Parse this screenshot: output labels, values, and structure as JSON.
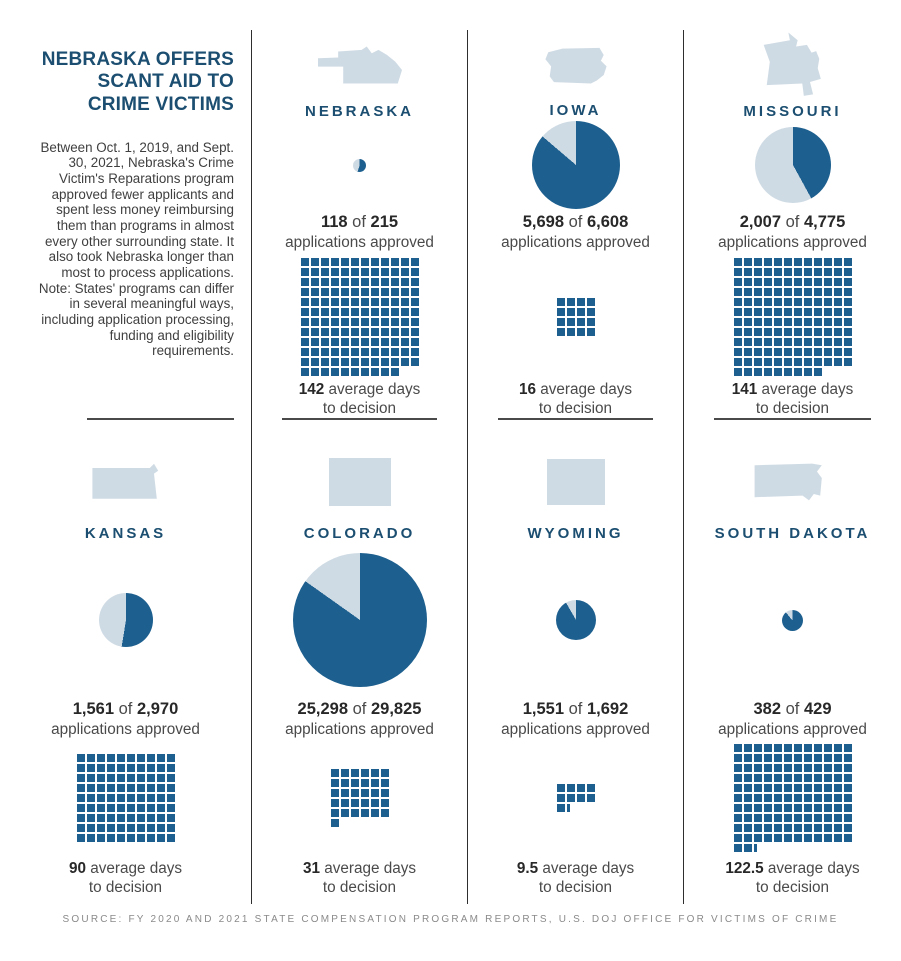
{
  "intro": {
    "title_lines": "NEBRASKA OFFERS SCANT AID TO CRIME VICTIMS",
    "body": "Between Oct. 1, 2019, and Sept. 30, 2021, Nebraska's Crime Victim's Reparations program approved fewer applicants and spent less money reimbursing them than programs in almost every other surrounding state. It also took Nebraska longer than most to process applications.",
    "note": "Note: States' programs can differ in several meaningful ways, including application processing, funding and eligibility requirements."
  },
  "labels": {
    "of": "of",
    "approved_line": "applications approved",
    "avg_days": "average days",
    "to_decision": "to decision"
  },
  "colors": {
    "blue": "#1d5f8e",
    "light": "#cfdbe4",
    "navy": "#1b4e70"
  },
  "source": "SOURCE: FY 2020 AND 2021 STATE COMPENSATION PROGRAM REPORTS, U.S. DOJ OFFICE FOR VICTIMS OF CRIME",
  "states": [
    {
      "name": "NEBRASKA",
      "approved": 118,
      "total": 215,
      "approved_label": "118",
      "total_label": "215",
      "pie_diameter": 13,
      "days_label": "142",
      "waffle": {
        "cols": 12,
        "full": 142,
        "half": false
      }
    },
    {
      "name": "IOWA",
      "approved": 5698,
      "total": 6608,
      "approved_label": "5,698",
      "total_label": "6,608",
      "pie_diameter": 88,
      "days_label": "16",
      "waffle": {
        "cols": 4,
        "full": 16,
        "half": false
      }
    },
    {
      "name": "MISSOURI",
      "approved": 2007,
      "total": 4775,
      "approved_label": "2,007",
      "total_label": "4,775",
      "pie_diameter": 76,
      "days_label": "141",
      "waffle": {
        "cols": 12,
        "full": 141,
        "half": false
      }
    },
    {
      "name": "KANSAS",
      "approved": 1561,
      "total": 2970,
      "approved_label": "1,561",
      "total_label": "2,970",
      "pie_diameter": 54,
      "days_label": "90",
      "waffle": {
        "cols": 10,
        "full": 90,
        "half": false
      }
    },
    {
      "name": "COLORADO",
      "approved": 25298,
      "total": 29825,
      "approved_label": "25,298",
      "total_label": "29,825",
      "pie_diameter": 134,
      "days_label": "31",
      "waffle": {
        "cols": 6,
        "full": 31,
        "half": false
      }
    },
    {
      "name": "WYOMING",
      "approved": 1551,
      "total": 1692,
      "approved_label": "1,551",
      "total_label": "1,692",
      "pie_diameter": 40,
      "days_label": "9.5",
      "waffle": {
        "cols": 4,
        "full": 9,
        "half": true
      }
    },
    {
      "name": "SOUTH DAKOTA",
      "approved": 382,
      "total": 429,
      "approved_label": "382",
      "total_label": "429",
      "pie_diameter": 21,
      "days_label": "122.5",
      "waffle": {
        "cols": 12,
        "full": 122,
        "half": true
      }
    }
  ],
  "chart_data": {
    "type": "table",
    "title": "Nebraska offers scant aid to crime victims",
    "columns": [
      "state",
      "applications_approved",
      "applications_total",
      "avg_days_to_decision"
    ],
    "rows": [
      [
        "Nebraska",
        118,
        215,
        142
      ],
      [
        "Iowa",
        5698,
        6608,
        16
      ],
      [
        "Missouri",
        2007,
        4775,
        141
      ],
      [
        "Kansas",
        1561,
        2970,
        90
      ],
      [
        "Colorado",
        25298,
        29825,
        31
      ],
      [
        "Wyoming",
        1551,
        1692,
        9.5
      ],
      [
        "South Dakota",
        382,
        429,
        122.5
      ]
    ],
    "notes": "Each state panel: pie chart = share of applications approved (circle sized by total applications, dark = approved); waffle grid = average days to decision, one square per day, half square = 0.5 day."
  }
}
